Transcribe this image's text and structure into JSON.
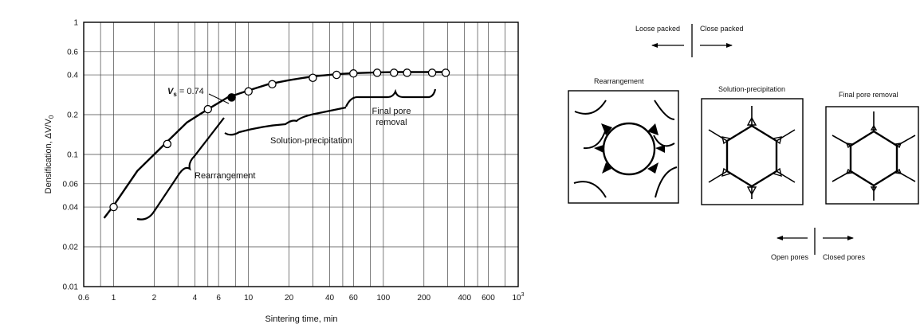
{
  "chart_data": {
    "type": "line",
    "xlabel": "Sintering time, min",
    "ylabel": "Densification, ΔV/V",
    "ylabel_sub": "0",
    "x_scale": "log",
    "y_scale": "log",
    "xlim": [
      0.6,
      1000
    ],
    "ylim": [
      0.01,
      1
    ],
    "grid": true,
    "x_ticks": [
      {
        "v": 0.6,
        "label": "0.6"
      },
      {
        "v": 1,
        "label": "1"
      },
      {
        "v": 2,
        "label": "2"
      },
      {
        "v": 4,
        "label": "4"
      },
      {
        "v": 6,
        "label": "6"
      },
      {
        "v": 10,
        "label": "10"
      },
      {
        "v": 20,
        "label": "20"
      },
      {
        "v": 40,
        "label": "40"
      },
      {
        "v": 60,
        "label": "60"
      },
      {
        "v": 100,
        "label": "100"
      },
      {
        "v": 200,
        "label": "200"
      },
      {
        "v": 400,
        "label": "400"
      },
      {
        "v": 600,
        "label": "600"
      },
      {
        "v": 1000,
        "label": "10",
        "sup": "3"
      }
    ],
    "x_gridlines": [
      0.6,
      0.8,
      1,
      2,
      3,
      4,
      5,
      6,
      8,
      10,
      20,
      30,
      40,
      50,
      60,
      80,
      100,
      200,
      300,
      400,
      500,
      600,
      800,
      1000
    ],
    "y_ticks": [
      {
        "v": 0.01,
        "label": "0.01"
      },
      {
        "v": 0.02,
        "label": "0.02"
      },
      {
        "v": 0.04,
        "label": "0.04"
      },
      {
        "v": 0.06,
        "label": "0.06"
      },
      {
        "v": 0.1,
        "label": "0.1"
      },
      {
        "v": 0.2,
        "label": "0.2"
      },
      {
        "v": 0.4,
        "label": "0.4"
      },
      {
        "v": 0.6,
        "label": "0.6"
      },
      {
        "v": 1,
        "label": "1"
      }
    ],
    "y_gridlines": [
      0.01,
      0.02,
      0.04,
      0.06,
      0.1,
      0.2,
      0.4,
      0.6,
      1
    ],
    "curve": {
      "x": [
        0.85,
        1,
        1.5,
        2.5,
        3.5,
        5,
        7,
        10,
        14,
        20,
        30,
        45,
        60,
        90,
        130,
        200,
        300
      ],
      "y": [
        0.033,
        0.041,
        0.075,
        0.125,
        0.175,
        0.22,
        0.27,
        0.305,
        0.34,
        0.365,
        0.39,
        0.405,
        0.412,
        0.418,
        0.42,
        0.42,
        0.42
      ]
    },
    "points": {
      "x": [
        1,
        2.5,
        5,
        7.5,
        10,
        15,
        30,
        45,
        60,
        90,
        120,
        150,
        230,
        290
      ],
      "y": [
        0.04,
        0.12,
        0.22,
        0.27,
        0.3,
        0.34,
        0.38,
        0.4,
        0.41,
        0.415,
        0.415,
        0.415,
        0.415,
        0.415
      ],
      "filled": [
        false,
        false,
        false,
        true,
        false,
        false,
        false,
        false,
        false,
        false,
        false,
        false,
        false,
        false
      ]
    },
    "stage_brackets": [
      {
        "label": "Rearrangement",
        "x_start": 1.2,
        "x_end": 6
      },
      {
        "label": "Solution-precipitation",
        "x_start": 6,
        "x_end": 60
      },
      {
        "label": "Final pore removal",
        "x_start": 60,
        "x_end": 300
      }
    ],
    "annotations": {
      "vs_text": "V",
      "vs_sub": "s",
      "vs_value": " = 0.74",
      "rearrangement": "Rearrangement",
      "solution_precipitation": "Solution-precipitation",
      "final_line1": "Final pore",
      "final_line2": "removal"
    }
  },
  "schematic": {
    "top_left_label": "Loose packed",
    "top_right_label": "Close packed",
    "panels": [
      {
        "title": "Rearrangement"
      },
      {
        "title": "Solution-precipitation"
      },
      {
        "title": "Final pore removal"
      }
    ],
    "bottom_left_label": "Open pores",
    "bottom_right_label": "Closed pores"
  }
}
